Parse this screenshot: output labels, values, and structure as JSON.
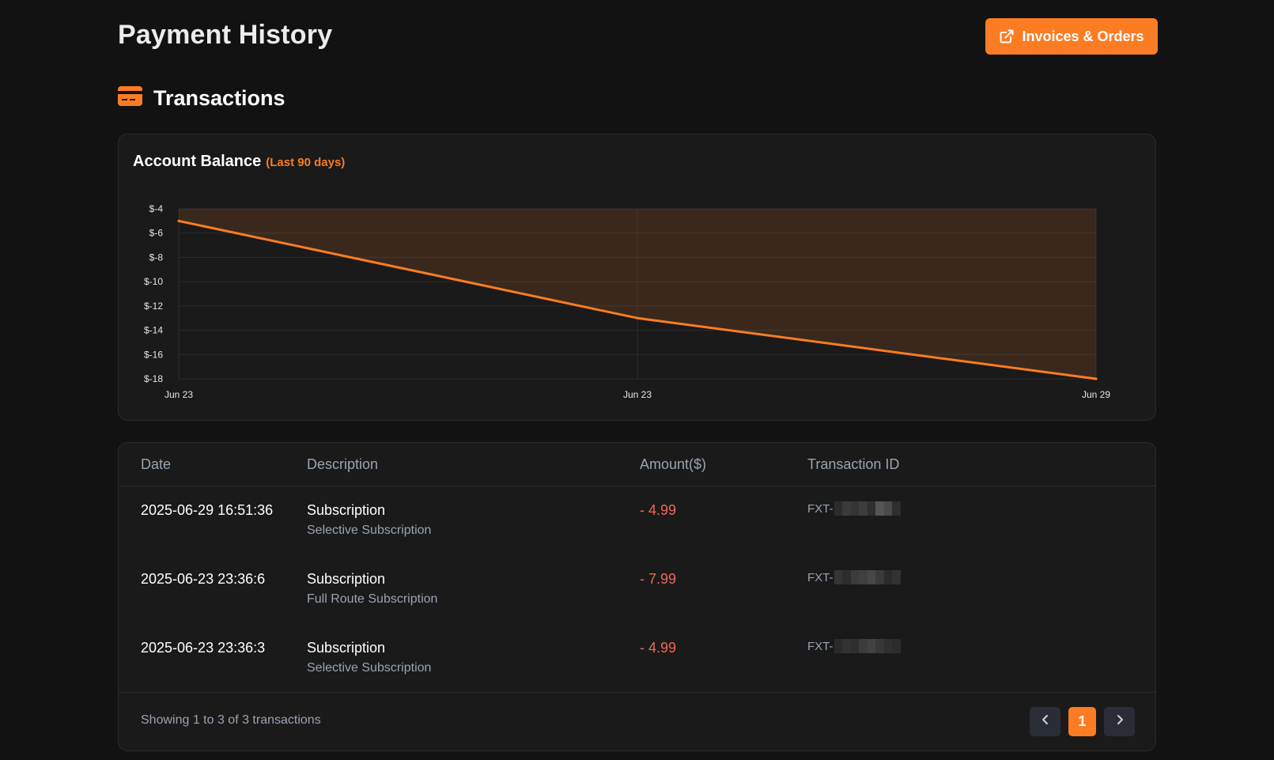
{
  "header": {
    "title": "Payment History",
    "invoices_button_label": "Invoices & Orders"
  },
  "section": {
    "title": "Transactions"
  },
  "colors": {
    "accent": "#fb7c23",
    "negative_amount": "#f0665b",
    "background": "#121212",
    "card": "#1a1a1a"
  },
  "chart_card": {
    "title": "Account Balance",
    "subtitle": "(Last 90 days)"
  },
  "chart_data": {
    "type": "area",
    "title": "Account Balance",
    "subtitle": "(Last 90 days)",
    "xlabel": "",
    "ylabel": "",
    "x_tick_labels": [
      "Jun 23",
      "Jun 23",
      "Jun 29"
    ],
    "y_tick_labels": [
      "$-4",
      "$-6",
      "$-8",
      "$-10",
      "$-12",
      "$-14",
      "$-16",
      "$-18"
    ],
    "ylim": [
      -18,
      -4
    ],
    "grid": true,
    "legend": "none",
    "series": [
      {
        "values": [
          -5,
          -13,
          -18
        ]
      }
    ]
  },
  "table": {
    "columns": [
      "Date",
      "Description",
      "Amount($)",
      "Transaction ID"
    ],
    "rows": [
      {
        "date": "2025-06-29 16:51:36",
        "title": "Subscription",
        "subtitle": "Selective Subscription",
        "amount": "- 4.99",
        "txid_prefix": "FXT-"
      },
      {
        "date": "2025-06-23 23:36:6",
        "title": "Subscription",
        "subtitle": "Full Route Subscription",
        "amount": "- 7.99",
        "txid_prefix": "FXT-"
      },
      {
        "date": "2025-06-23 23:36:3",
        "title": "Subscription",
        "subtitle": "Selective Subscription",
        "amount": "- 4.99",
        "txid_prefix": "FXT-"
      }
    ],
    "footer_text": "Showing 1 to 3 of 3 transactions",
    "current_page": "1"
  },
  "icons": {
    "invoices": "external-link-icon",
    "section": "credit-card-icon",
    "prev": "chevron-left-icon",
    "next": "chevron-right-icon"
  }
}
